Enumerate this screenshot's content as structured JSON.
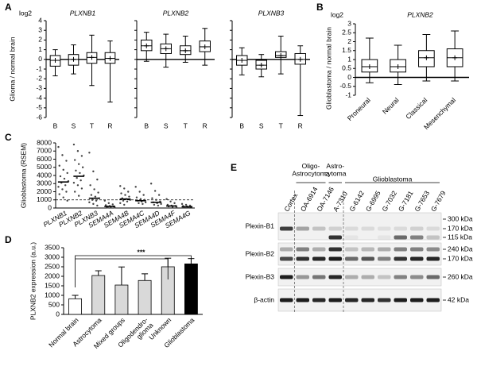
{
  "chart_data": [
    {
      "panel": "A",
      "type": "box",
      "unit_label": "log2",
      "ylabel": "Glioma / normal brain",
      "ylim": [
        -6,
        4
      ],
      "yticks": [
        -6,
        -5,
        -4,
        -3,
        -2,
        -1,
        0,
        1,
        2,
        3,
        4
      ],
      "zero_line": true,
      "subplots": [
        {
          "title": "PLXNB1",
          "categories": [
            "B",
            "S",
            "T",
            "R"
          ],
          "min": [
            -1.7,
            -1.5,
            -2.7,
            -4.4
          ],
          "q1": [
            -0.7,
            -0.6,
            -0.4,
            -0.4
          ],
          "median": [
            -0.1,
            0.0,
            0.2,
            0.1
          ],
          "q3": [
            0.4,
            0.5,
            0.7,
            0.7
          ],
          "max": [
            1.0,
            1.5,
            2.5,
            1.9
          ],
          "mean": [
            -0.1,
            0.0,
            0.2,
            0.1
          ]
        },
        {
          "title": "PLXNB2",
          "categories": [
            "B",
            "S",
            "T",
            "R"
          ],
          "min": [
            -0.2,
            -0.8,
            -0.3,
            -0.6
          ],
          "q1": [
            0.9,
            0.6,
            0.5,
            0.8
          ],
          "median": [
            1.4,
            1.1,
            0.9,
            1.3
          ],
          "q3": [
            2.0,
            1.6,
            1.4,
            1.9
          ],
          "max": [
            2.8,
            2.6,
            2.4,
            3.2
          ],
          "mean": [
            1.4,
            1.1,
            0.9,
            1.3
          ]
        },
        {
          "title": "PLXNB3",
          "categories": [
            "B",
            "S",
            "T",
            "R"
          ],
          "min": [
            -1.6,
            -1.8,
            -1.5,
            -5.8
          ],
          "q1": [
            -0.6,
            -1.0,
            0.2,
            -0.5
          ],
          "median": [
            -0.1,
            -0.6,
            0.4,
            0.0
          ],
          "q3": [
            0.4,
            -0.1,
            0.8,
            0.6
          ],
          "max": [
            1.2,
            0.5,
            2.4,
            1.4
          ],
          "mean": [
            -0.1,
            -0.6,
            0.4,
            0.0
          ]
        }
      ]
    },
    {
      "panel": "B",
      "type": "box",
      "unit_label": "log2",
      "ylabel": "Glioblastoma / normal brain",
      "ylim": [
        -1,
        3
      ],
      "yticks": [
        -1,
        -0.5,
        0,
        0.5,
        1,
        1.5,
        2,
        2.5,
        3
      ],
      "zero_line": true,
      "subplots": [
        {
          "title": "PLXNB2",
          "categories": [
            "Proneural",
            "Neural",
            "Classical",
            "Mesenchymal"
          ],
          "min": [
            -0.3,
            -0.4,
            -0.2,
            -0.2
          ],
          "q1": [
            0.3,
            0.3,
            0.6,
            0.6
          ],
          "median": [
            0.6,
            0.6,
            1.1,
            1.1
          ],
          "q3": [
            1.0,
            1.0,
            1.5,
            1.6
          ],
          "max": [
            2.2,
            1.8,
            2.4,
            2.6
          ],
          "mean": [
            0.6,
            0.6,
            1.1,
            1.1
          ]
        }
      ]
    },
    {
      "panel": "C",
      "type": "strip",
      "ylabel": "Glioblastoma (RSEM)",
      "ylim": [
        0,
        8000
      ],
      "yticks": [
        0,
        1000,
        2000,
        3000,
        4000,
        5000,
        6000,
        7000,
        8000
      ],
      "reference_line": 1000,
      "categories": [
        "PLXNB1",
        "PLXNB2",
        "PLXNB3",
        "SEMA4A",
        "SEMA4B",
        "SEMA4C",
        "SEMA4D",
        "SEMA4F",
        "SEMA4G"
      ],
      "means": [
        3200,
        3900,
        1200,
        200,
        1100,
        900,
        700,
        250,
        150
      ],
      "points": [
        [
          7500,
          6500,
          5800,
          5200,
          4700,
          4300,
          3900,
          3600,
          3300,
          3100,
          2800,
          2600,
          2300,
          2000,
          1700,
          1300,
          900
        ],
        [
          7800,
          7000,
          6400,
          5900,
          5400,
          5000,
          4600,
          4300,
          4000,
          3700,
          3400,
          3100,
          2800,
          2400,
          2000,
          1500
        ],
        [
          6800,
          4500,
          3500,
          2800,
          2300,
          1900,
          1600,
          1400,
          1200,
          1000,
          900,
          700,
          500,
          300
        ],
        [
          900,
          600,
          450,
          350,
          250,
          200,
          150,
          100,
          80,
          50
        ],
        [
          2700,
          2400,
          2000,
          1800,
          1600,
          1400,
          1200,
          1100,
          1000,
          900,
          800,
          600,
          400
        ],
        [
          2600,
          2000,
          1600,
          1300,
          1100,
          1000,
          900,
          800,
          700,
          600,
          500
        ],
        [
          3000,
          2100,
          1600,
          1200,
          1000,
          800,
          700,
          600,
          500,
          400,
          300
        ],
        [
          1100,
          800,
          600,
          400,
          300,
          250,
          200,
          150,
          100
        ],
        [
          500,
          400,
          300,
          250,
          200,
          150,
          100,
          80
        ]
      ]
    },
    {
      "panel": "D",
      "type": "bar",
      "ylabel": "PLXNB2 expression (a.u.)",
      "ylim": [
        0,
        3500
      ],
      "yticks": [
        0,
        500,
        1000,
        1500,
        2000,
        2500,
        3000,
        3500
      ],
      "categories": [
        "Normal brain",
        "Astrocytoma",
        "Mixed groups",
        "Oligodendro-\nglioma",
        "Unknown",
        "Glioblastoma"
      ],
      "values": [
        820,
        2040,
        1540,
        1780,
        2500,
        2650
      ],
      "errors": [
        180,
        250,
        950,
        350,
        450,
        280
      ],
      "colors": [
        "#ffffff",
        "#d9d9d9",
        "#d9d9d9",
        "#d9d9d9",
        "#d9d9d9",
        "#000000"
      ],
      "annotation": "***"
    }
  ],
  "blot": {
    "panel": "E",
    "groups": [
      "Oligo-\nAstrocytoma",
      "Astro-\ncytoma",
      "Glioblastoma"
    ],
    "lanes": [
      "Cortex",
      "OA-6914",
      "OA-7146",
      "A-7310",
      "G-6142",
      "G-6995",
      "G-7032",
      "G-7181",
      "G-7653",
      "G-7679"
    ],
    "rows": [
      {
        "label": "Plexin-B1",
        "markers": [
          "300 kDa",
          "170 kDa",
          "115 kDa"
        ]
      },
      {
        "label": "Plexin-B2",
        "markers": [
          "240 kDa",
          "170 kDa"
        ]
      },
      {
        "label": "Plexin-B3",
        "markers": [
          "260 kDa"
        ]
      },
      {
        "label": "β-actin",
        "markers": [
          "42 kDa"
        ]
      }
    ]
  }
}
